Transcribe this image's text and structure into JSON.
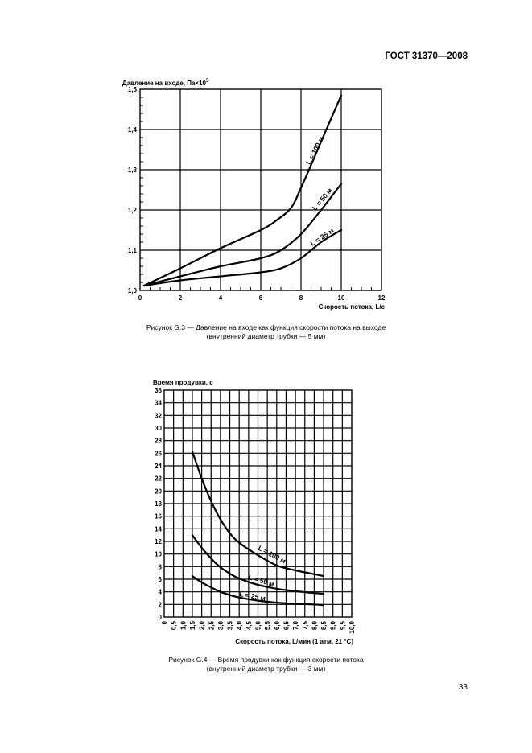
{
  "header": {
    "standard": "ГОСТ 31370—2008"
  },
  "page_number": "33",
  "figure_g3": {
    "caption_line1": "Рисунок G.3 — Давление на входе как функция скорости потока на выходе",
    "caption_line2": "(внутренний диаметр трубки — 5 мм)"
  },
  "figure_g4": {
    "caption_line1": "Рисунок G.4 — Время продувки как функция скорости потока",
    "caption_line2": "(внутренний диаметр трубки — 3 мм)"
  },
  "chart_data": [
    {
      "type": "line",
      "title": "",
      "ylabel_prefix": "Давление на входе, Па×10",
      "ylabel_sup": "5",
      "xlabel": "Скорость потока, L/с",
      "xlim": [
        0,
        12
      ],
      "ylim": [
        1.0,
        1.5
      ],
      "xticks": [
        0,
        2,
        4,
        6,
        8,
        10,
        12
      ],
      "xtick_labels": [
        "0",
        "2",
        "4",
        "6",
        "8",
        "10",
        "12"
      ],
      "yticks": [
        1.0,
        1.1,
        1.2,
        1.3,
        1.4,
        1.5
      ],
      "ytick_labels": [
        "1,0",
        "1,1",
        "1,2",
        "1,3",
        "1,4",
        "1,5"
      ],
      "minor_y_step": 0.02,
      "grid": true,
      "series": [
        {
          "name": "L = 100 м",
          "x": [
            0.2,
            2,
            4,
            6,
            6.8,
            7.5,
            8.0,
            9.0,
            10.0
          ],
          "y": [
            1.012,
            1.055,
            1.105,
            1.15,
            1.175,
            1.205,
            1.255,
            1.37,
            1.485
          ]
        },
        {
          "name": "L = 50 м",
          "x": [
            0.2,
            2,
            4,
            6,
            7,
            8.0,
            9.0,
            10.0
          ],
          "y": [
            1.012,
            1.035,
            1.06,
            1.08,
            1.1,
            1.14,
            1.2,
            1.265
          ]
        },
        {
          "name": "L = 25 м",
          "x": [
            0.2,
            2,
            4,
            6,
            7,
            8.0,
            9.0,
            10.0
          ],
          "y": [
            1.012,
            1.025,
            1.035,
            1.045,
            1.055,
            1.08,
            1.12,
            1.15
          ]
        }
      ]
    },
    {
      "type": "line",
      "title": "",
      "ylabel": "Время продувки, с",
      "xlabel": "Скорость потока, L/мин (1 атм, 21 °C)",
      "xlim": [
        0,
        10.0
      ],
      "ylim": [
        0,
        36
      ],
      "xticks": [
        0,
        0.5,
        1.0,
        1.5,
        2.0,
        2.5,
        3.0,
        3.5,
        4.0,
        4.5,
        5.0,
        5.5,
        6.0,
        6.5,
        7.0,
        7.5,
        8.0,
        8.5,
        9.0,
        9.5,
        10.0
      ],
      "xtick_labels": [
        "0",
        "0,5",
        "1,0",
        "1,5",
        "2,0",
        "2,5",
        "3,0",
        "3,5",
        "4,0",
        "4,5",
        "5,0",
        "5,5",
        "6,0",
        "6,5",
        "7,0",
        "7,5",
        "8,0",
        "8,5",
        "9,0",
        "9,5",
        "10,0"
      ],
      "yticks": [
        0,
        2,
        4,
        6,
        8,
        10,
        12,
        14,
        16,
        18,
        20,
        22,
        24,
        26,
        28,
        30,
        32,
        34,
        36
      ],
      "ytick_labels": [
        "0",
        "2",
        "4",
        "6",
        "8",
        "10",
        "12",
        "14",
        "16",
        "18",
        "20",
        "22",
        "24",
        "26",
        "28",
        "30",
        "32",
        "34",
        "36"
      ],
      "grid": true,
      "series": [
        {
          "name": "L = 100 м",
          "x": [
            1.5,
            2.0,
            2.5,
            3.0,
            3.5,
            4.0,
            5.0,
            6.0,
            7.0,
            8.0,
            8.5
          ],
          "y": [
            26.3,
            22.0,
            18.4,
            15.5,
            13.3,
            11.8,
            9.8,
            8.2,
            7.4,
            6.8,
            6.5
          ]
        },
        {
          "name": "L = 50 м",
          "x": [
            1.5,
            2.0,
            2.5,
            3.0,
            3.5,
            4.0,
            5.0,
            6.0,
            7.0,
            8.0,
            8.5
          ],
          "y": [
            13.0,
            11.0,
            9.3,
            7.9,
            6.9,
            6.1,
            5.1,
            4.5,
            4.1,
            3.8,
            3.7
          ]
        },
        {
          "name": "L = 25 м",
          "x": [
            1.5,
            2.0,
            2.5,
            3.0,
            3.5,
            4.0,
            5.0,
            6.0,
            7.0,
            8.0,
            8.5
          ],
          "y": [
            6.5,
            5.5,
            4.7,
            4.0,
            3.5,
            3.1,
            2.6,
            2.3,
            2.1,
            2.0,
            1.9
          ]
        }
      ]
    }
  ]
}
